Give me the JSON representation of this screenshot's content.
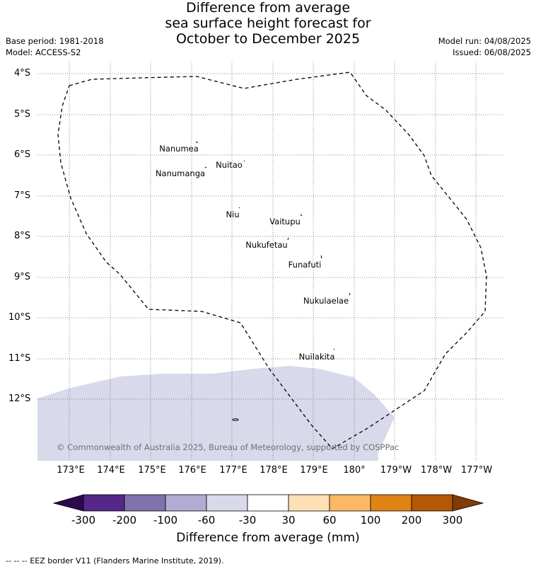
{
  "title": {
    "line1": "Difference from average",
    "line2": "sea surface height forecast for",
    "line3": "October to December 2025"
  },
  "meta": {
    "base_period": "Base period: 1981-2018",
    "model": "Model: ACCESS-S2",
    "model_run": "Model run: 04/08/2025",
    "issued": "Issued: 06/08/2025"
  },
  "axes": {
    "lat_labels": [
      "4°S",
      "5°S",
      "6°S",
      "7°S",
      "8°S",
      "9°S",
      "10°S",
      "11°S",
      "12°S"
    ],
    "lon_labels": [
      "173°E",
      "174°E",
      "175°E",
      "176°E",
      "177°E",
      "178°E",
      "179°E",
      "180°",
      "179°W",
      "178°W",
      "177°W"
    ]
  },
  "islands": [
    {
      "name": "Nanumea"
    },
    {
      "name": "Nuitao"
    },
    {
      "name": "Nanumanga"
    },
    {
      "name": "Niu"
    },
    {
      "name": "Vaitupu"
    },
    {
      "name": "Nukufetau"
    },
    {
      "name": "Funafuti"
    },
    {
      "name": "Nukulaelae"
    },
    {
      "name": "Nuilakita"
    }
  ],
  "copyright": "© Commonwealth of Australia 2025, Bureau of Meteorology, supported by COSPPac",
  "colorbar": {
    "title": "Difference from average (mm)",
    "ticks": [
      "-300",
      "-200",
      "-100",
      "-60",
      "-30",
      "30",
      "60",
      "100",
      "200",
      "300"
    ],
    "colors": {
      "below_min": "#2d0a4e",
      "bins": [
        "#542788",
        "#8073ac",
        "#b2abd2",
        "#d8daeb",
        "#ffffff",
        "#fee0b6",
        "#fdb863",
        "#e08214",
        "#b35806"
      ],
      "above_max": "#7f3b08"
    }
  },
  "map_colors": {
    "anomaly_fill": "#d8daeb",
    "eez_border": "#000000",
    "gridline": "#555555"
  },
  "footnote": "--  --  -- EEZ border V11 (Flanders Marine Institute, 2019)."
}
